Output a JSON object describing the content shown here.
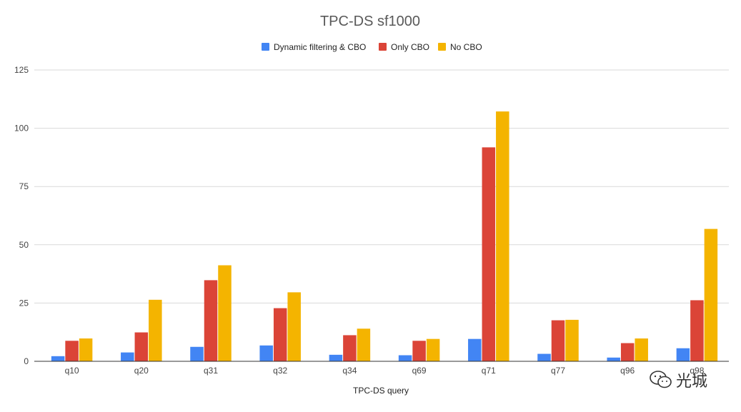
{
  "chart_data": {
    "type": "bar",
    "title": "TPC-DS sf1000",
    "xlabel": "TPC-DS query",
    "ylabel": "",
    "categories": [
      "q10",
      "q20",
      "q31",
      "q32",
      "q34",
      "q69",
      "q71",
      "q77",
      "q96",
      "q98"
    ],
    "series": [
      {
        "name": "Dynamic filtering & CBO",
        "color": "#4285f4",
        "values": [
          2.2,
          3.8,
          6.2,
          6.8,
          2.8,
          2.6,
          9.6,
          3.2,
          1.6,
          5.6
        ]
      },
      {
        "name": "Only CBO",
        "color": "#db4437",
        "values": [
          8.8,
          12.4,
          34.8,
          22.8,
          11.2,
          8.8,
          91.8,
          17.6,
          7.8,
          26.2
        ]
      },
      {
        "name": "No CBO",
        "color": "#f4b400",
        "values": [
          9.8,
          26.4,
          41.2,
          29.6,
          14.0,
          9.6,
          107.2,
          17.8,
          9.8,
          56.8
        ]
      }
    ],
    "yticks": [
      0,
      25,
      50,
      75,
      100,
      125
    ],
    "ylim": [
      0,
      125
    ],
    "grid": true,
    "legend_position": "top-center"
  },
  "watermark": {
    "text": "光城",
    "icon": "wechat-icon"
  }
}
